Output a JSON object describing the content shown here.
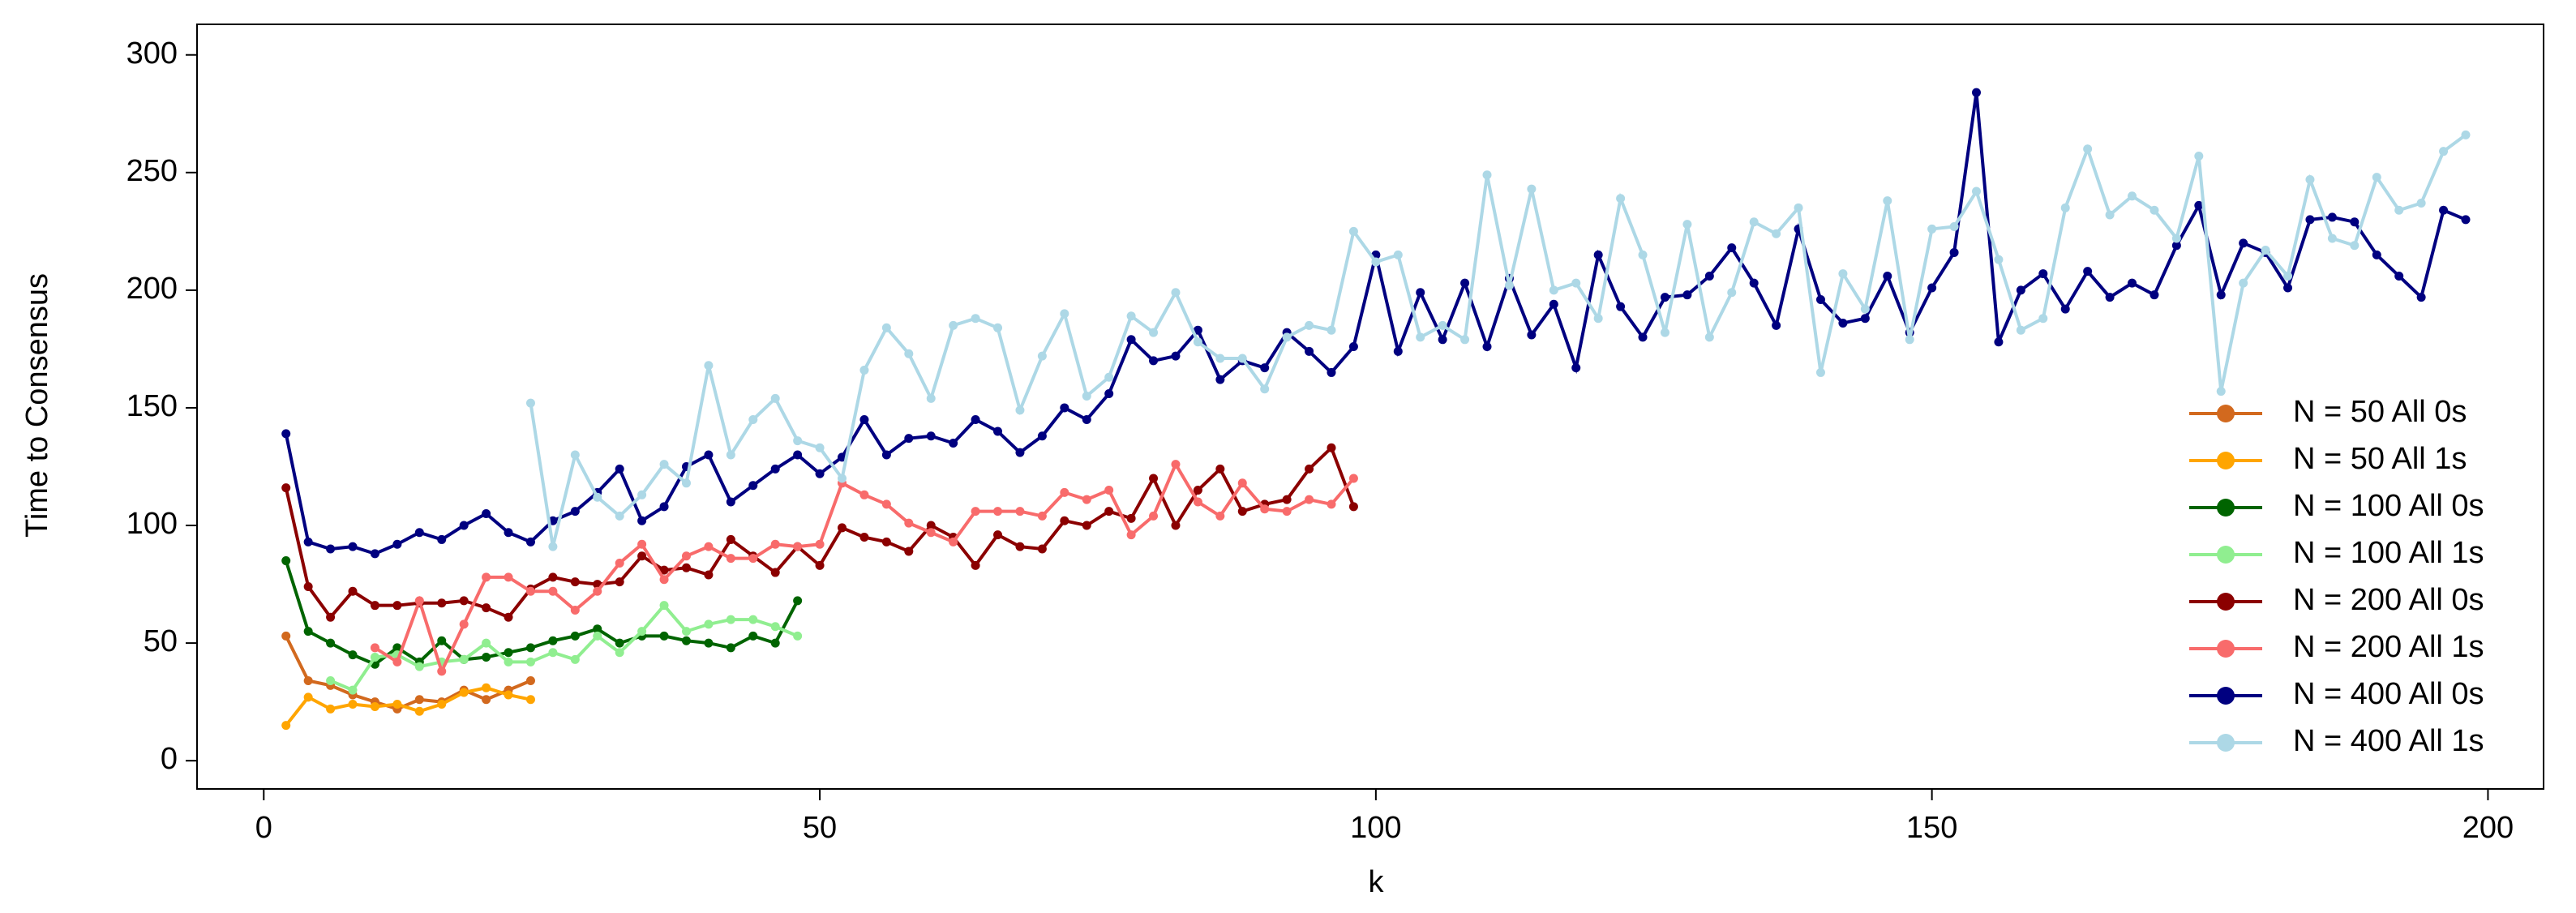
{
  "chart_data": {
    "type": "line",
    "x_label": "k",
    "y_label": "Time to Consensus",
    "xlim": [
      -6,
      205
    ],
    "ylim": [
      -12,
      313
    ],
    "xticks": [
      0,
      50,
      100,
      150,
      200
    ],
    "yticks": [
      0,
      50,
      100,
      150,
      200,
      250,
      300
    ],
    "legend": "lower right",
    "series": [
      {
        "name": "N = 50 All 0s",
        "color": "#d2691e",
        "x": [
          2,
          4,
          6,
          8,
          10,
          12,
          14,
          16,
          18,
          20,
          22,
          24
        ],
        "values": [
          53,
          34,
          32,
          28,
          25,
          22,
          26,
          25,
          30,
          26,
          30,
          34
        ]
      },
      {
        "name": "N = 50 All 1s",
        "color": "#ffa500",
        "x": [
          2,
          4,
          6,
          8,
          10,
          12,
          14,
          16,
          18,
          20,
          22,
          24
        ],
        "values": [
          15,
          27,
          22,
          24,
          23,
          24,
          21,
          24,
          29,
          31,
          28,
          26
        ]
      },
      {
        "name": "N = 100 All 0s",
        "color": "#006400",
        "x": [
          2,
          4,
          6,
          8,
          10,
          12,
          14,
          16,
          18,
          20,
          22,
          24,
          26,
          28,
          30,
          32,
          34,
          36,
          38,
          40,
          42,
          44,
          46,
          48
        ],
        "values": [
          85,
          55,
          50,
          45,
          41,
          48,
          42,
          51,
          43,
          44,
          46,
          48,
          51,
          53,
          56,
          50,
          53,
          53,
          51,
          50,
          48,
          53,
          50,
          68
        ]
      },
      {
        "name": "N = 100 All 1s",
        "color": "#90ee90",
        "x": [
          6,
          8,
          10,
          12,
          14,
          16,
          18,
          20,
          22,
          24,
          26,
          28,
          30,
          32,
          34,
          36,
          38,
          40,
          42,
          44,
          46,
          48
        ],
        "values": [
          34,
          30,
          44,
          45,
          40,
          42,
          43,
          50,
          42,
          42,
          46,
          43,
          53,
          46,
          55,
          66,
          55,
          58,
          60,
          60,
          57,
          53
        ]
      },
      {
        "name": "N = 200 All 0s",
        "color": "#8b0000",
        "x": [
          2,
          4,
          6,
          8,
          10,
          12,
          14,
          16,
          18,
          20,
          22,
          24,
          26,
          28,
          30,
          32,
          34,
          36,
          38,
          40,
          42,
          44,
          46,
          48,
          50,
          52,
          54,
          56,
          58,
          60,
          62,
          64,
          66,
          68,
          70,
          72,
          74,
          76,
          78,
          80,
          82,
          84,
          86,
          88,
          90,
          92,
          94,
          96,
          98
        ],
        "values": [
          116,
          74,
          61,
          72,
          66,
          66,
          67,
          67,
          68,
          65,
          61,
          73,
          78,
          76,
          75,
          76,
          87,
          81,
          82,
          79,
          94,
          87,
          80,
          91,
          83,
          99,
          95,
          93,
          89,
          100,
          95,
          83,
          96,
          91,
          90,
          102,
          100,
          106,
          103,
          120,
          100,
          115,
          124,
          106,
          109,
          111,
          124,
          133,
          108
        ]
      },
      {
        "name": "N = 200 All 1s",
        "color": "#f86b6b",
        "x": [
          10,
          12,
          14,
          16,
          18,
          20,
          22,
          24,
          26,
          28,
          30,
          32,
          34,
          36,
          38,
          40,
          42,
          44,
          46,
          48,
          50,
          52,
          54,
          56,
          58,
          60,
          62,
          64,
          66,
          68,
          70,
          72,
          74,
          76,
          78,
          80,
          82,
          84,
          86,
          88,
          90,
          92,
          94,
          96,
          98
        ],
        "values": [
          48,
          42,
          68,
          38,
          58,
          78,
          78,
          72,
          72,
          64,
          72,
          84,
          92,
          77,
          87,
          91,
          86,
          86,
          92,
          91,
          92,
          118,
          113,
          109,
          101,
          97,
          93,
          106,
          106,
          106,
          104,
          114,
          111,
          115,
          96,
          104,
          126,
          110,
          104,
          118,
          107,
          106,
          111,
          109,
          120
        ]
      },
      {
        "name": "N = 400 All 0s",
        "color": "#000080",
        "x": [
          2,
          4,
          6,
          8,
          10,
          12,
          14,
          16,
          18,
          20,
          22,
          24,
          26,
          28,
          30,
          32,
          34,
          36,
          38,
          40,
          42,
          44,
          46,
          48,
          50,
          52,
          54,
          56,
          58,
          60,
          62,
          64,
          66,
          68,
          70,
          72,
          74,
          76,
          78,
          80,
          82,
          84,
          86,
          88,
          90,
          92,
          94,
          96,
          98,
          100,
          102,
          104,
          106,
          108,
          110,
          112,
          114,
          116,
          118,
          120,
          122,
          124,
          126,
          128,
          130,
          132,
          134,
          136,
          138,
          140,
          142,
          144,
          146,
          148,
          150,
          152,
          154,
          156,
          158,
          160,
          162,
          164,
          166,
          168,
          170,
          172,
          174,
          176,
          178,
          180,
          182,
          184,
          186,
          188,
          190,
          192,
          194,
          196,
          198
        ],
        "values": [
          139,
          93,
          90,
          91,
          88,
          92,
          97,
          94,
          100,
          105,
          97,
          93,
          102,
          106,
          114,
          124,
          102,
          108,
          125,
          130,
          110,
          117,
          124,
          130,
          122,
          129,
          145,
          130,
          137,
          138,
          135,
          145,
          140,
          131,
          138,
          150,
          145,
          156,
          179,
          170,
          172,
          183,
          162,
          170,
          167,
          182,
          174,
          165,
          176,
          215,
          174,
          199,
          179,
          203,
          176,
          205,
          181,
          194,
          167,
          215,
          193,
          180,
          197,
          198,
          206,
          218,
          203,
          185,
          226,
          196,
          186,
          188,
          206,
          182,
          201,
          216,
          284,
          178,
          200,
          207,
          192,
          208,
          197,
          203,
          198,
          219,
          236,
          198,
          220,
          216,
          201,
          230,
          231,
          229,
          215,
          206,
          197,
          234,
          230
        ]
      },
      {
        "name": "N = 400 All 1s",
        "color": "#add8e6",
        "x": [
          24,
          26,
          28,
          30,
          32,
          34,
          36,
          38,
          40,
          42,
          44,
          46,
          48,
          50,
          52,
          54,
          56,
          58,
          60,
          62,
          64,
          66,
          68,
          70,
          72,
          74,
          76,
          78,
          80,
          82,
          84,
          86,
          88,
          90,
          92,
          94,
          96,
          98,
          100,
          102,
          104,
          106,
          108,
          110,
          112,
          114,
          116,
          118,
          120,
          122,
          124,
          126,
          128,
          130,
          132,
          134,
          136,
          138,
          140,
          142,
          144,
          146,
          148,
          150,
          152,
          154,
          156,
          158,
          160,
          162,
          164,
          166,
          168,
          170,
          172,
          174,
          176,
          178,
          180,
          182,
          184,
          186,
          188,
          190,
          192,
          194,
          196,
          198
        ],
        "values": [
          152,
          91,
          130,
          112,
          104,
          113,
          126,
          118,
          168,
          130,
          145,
          154,
          136,
          133,
          120,
          166,
          184,
          173,
          154,
          185,
          188,
          184,
          149,
          172,
          190,
          155,
          163,
          189,
          182,
          199,
          178,
          171,
          171,
          158,
          180,
          185,
          183,
          225,
          212,
          215,
          180,
          185,
          179,
          249,
          202,
          243,
          200,
          203,
          188,
          239,
          215,
          182,
          228,
          180,
          199,
          229,
          224,
          235,
          165,
          207,
          192,
          238,
          179,
          226,
          227,
          242,
          213,
          183,
          188,
          235,
          260,
          232,
          240,
          234,
          222,
          257,
          157,
          203,
          217,
          206,
          247,
          222,
          219,
          248,
          234,
          237,
          259,
          266
        ]
      }
    ]
  }
}
